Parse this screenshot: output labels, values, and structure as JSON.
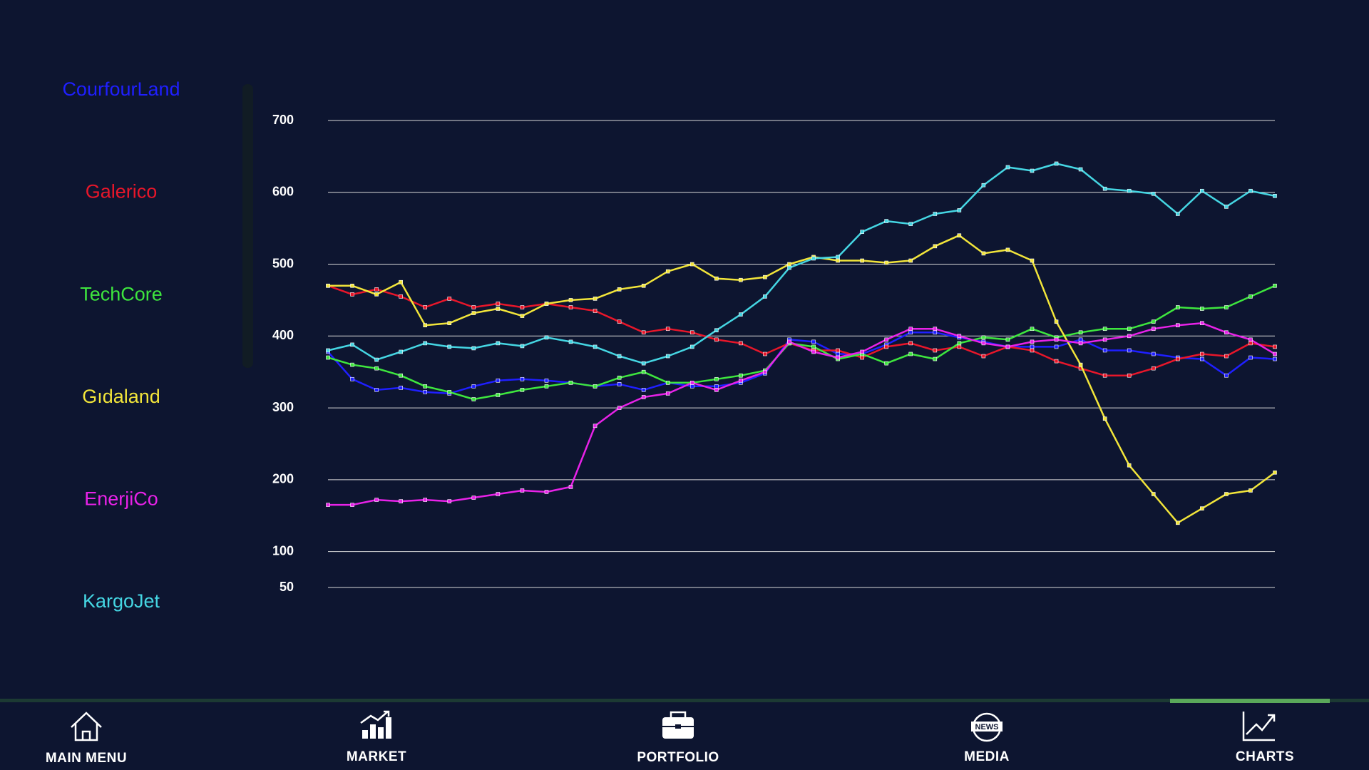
{
  "chart_data": {
    "type": "line",
    "ylim": [
      50,
      700
    ],
    "yticks": [
      50,
      100,
      200,
      300,
      400,
      500,
      600,
      700
    ],
    "grid": true,
    "legend": "left",
    "series": [
      {
        "name": "CourfourLand",
        "color": "#1f1fff",
        "values": [
          378,
          340,
          325,
          328,
          322,
          320,
          330,
          338,
          340,
          338,
          335,
          330,
          333,
          325,
          335,
          330,
          330,
          335,
          348,
          395,
          392,
          375,
          375,
          388,
          405,
          405,
          398,
          392,
          385,
          385,
          385,
          395,
          380,
          380,
          375,
          370,
          368,
          345,
          370,
          368
        ]
      },
      {
        "name": "Galerico",
        "color": "#e8162a",
        "values": [
          470,
          458,
          465,
          455,
          440,
          452,
          440,
          445,
          440,
          445,
          440,
          435,
          420,
          405,
          410,
          405,
          395,
          390,
          375,
          390,
          380,
          380,
          370,
          385,
          390,
          380,
          385,
          372,
          385,
          380,
          365,
          355,
          345,
          345,
          355,
          368,
          375,
          372,
          390,
          385
        ]
      },
      {
        "name": "TechCore",
        "color": "#3ee63e",
        "values": [
          370,
          360,
          355,
          345,
          330,
          322,
          312,
          318,
          325,
          330,
          335,
          330,
          342,
          350,
          335,
          335,
          340,
          345,
          352,
          390,
          385,
          368,
          375,
          362,
          375,
          368,
          390,
          398,
          395,
          410,
          398,
          405,
          410,
          410,
          420,
          440,
          438,
          440,
          455,
          470
        ]
      },
      {
        "name": "Gıdaland",
        "color": "#f2e53a",
        "values": [
          470,
          470,
          458,
          475,
          415,
          418,
          432,
          438,
          428,
          445,
          450,
          452,
          465,
          470,
          490,
          500,
          480,
          478,
          482,
          500,
          510,
          505,
          505,
          502,
          505,
          525,
          540,
          515,
          520,
          505,
          420,
          360,
          285,
          220,
          180,
          140,
          160,
          180,
          185,
          210
        ]
      },
      {
        "name": "EnerjiCo",
        "color": "#e822e8",
        "values": [
          165,
          165,
          172,
          170,
          172,
          170,
          175,
          180,
          185,
          183,
          190,
          275,
          300,
          315,
          320,
          335,
          325,
          338,
          350,
          392,
          378,
          370,
          378,
          395,
          410,
          410,
          400,
          390,
          385,
          392,
          395,
          390,
          395,
          400,
          410,
          415,
          418,
          405,
          395,
          375
        ]
      },
      {
        "name": "KargoJet",
        "color": "#45d6e3",
        "values": [
          380,
          388,
          367,
          378,
          390,
          385,
          383,
          390,
          386,
          398,
          392,
          385,
          372,
          362,
          372,
          385,
          408,
          430,
          455,
          495,
          508,
          510,
          545,
          560,
          556,
          570,
          575,
          610,
          635,
          630,
          640,
          632,
          605,
          602,
          598,
          570,
          602,
          580,
          602,
          595
        ]
      }
    ]
  },
  "nav": {
    "active": 4,
    "items": [
      {
        "label": "MAIN MENU"
      },
      {
        "label": "MARKET"
      },
      {
        "label": "PORTFOLIO"
      },
      {
        "label": "MEDIA",
        "icon_text": "NEWS"
      },
      {
        "label": "CHARTS"
      }
    ]
  }
}
